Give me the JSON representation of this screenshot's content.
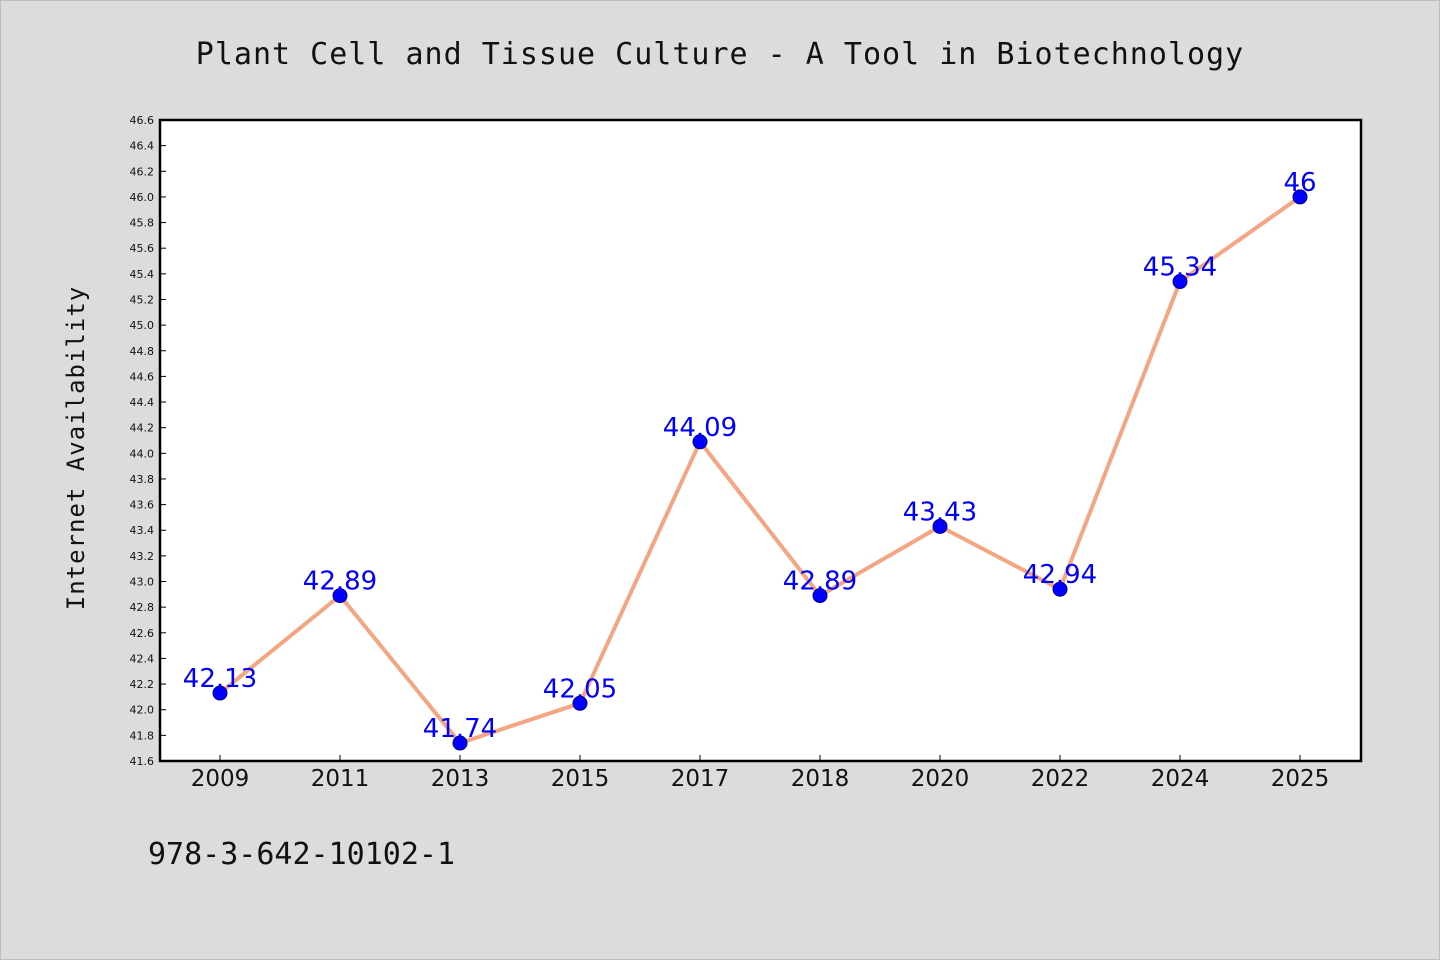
{
  "chart_data": {
    "type": "line",
    "title": "Plant Cell and Tissue Culture - A Tool in Biotechnology",
    "xlabel": "",
    "ylabel": "Internet Availability",
    "categories": [
      "2009",
      "2011",
      "2013",
      "2015",
      "2017",
      "2018",
      "2020",
      "2022",
      "2024",
      "2025"
    ],
    "series": [
      {
        "values": [
          42.13,
          42.89,
          41.74,
          42.05,
          44.09,
          42.89,
          43.43,
          42.94,
          45.34,
          46
        ],
        "labels": [
          "42.13",
          "42.89",
          "41.74",
          "42.05",
          "44.09",
          "42.89",
          "43.43",
          "42.94",
          "45.34",
          "46"
        ]
      }
    ],
    "ylim": [
      41.6,
      46.6
    ],
    "ytick_step": 0.2,
    "grid": false,
    "legend": "none",
    "colors": {
      "line": "#f4a582",
      "marker": "#0000ff",
      "data_label": "#0000ff",
      "background": "#dcdcdc",
      "plot_background": "#ffffff"
    }
  },
  "footnote": "978-3-642-10102-1"
}
